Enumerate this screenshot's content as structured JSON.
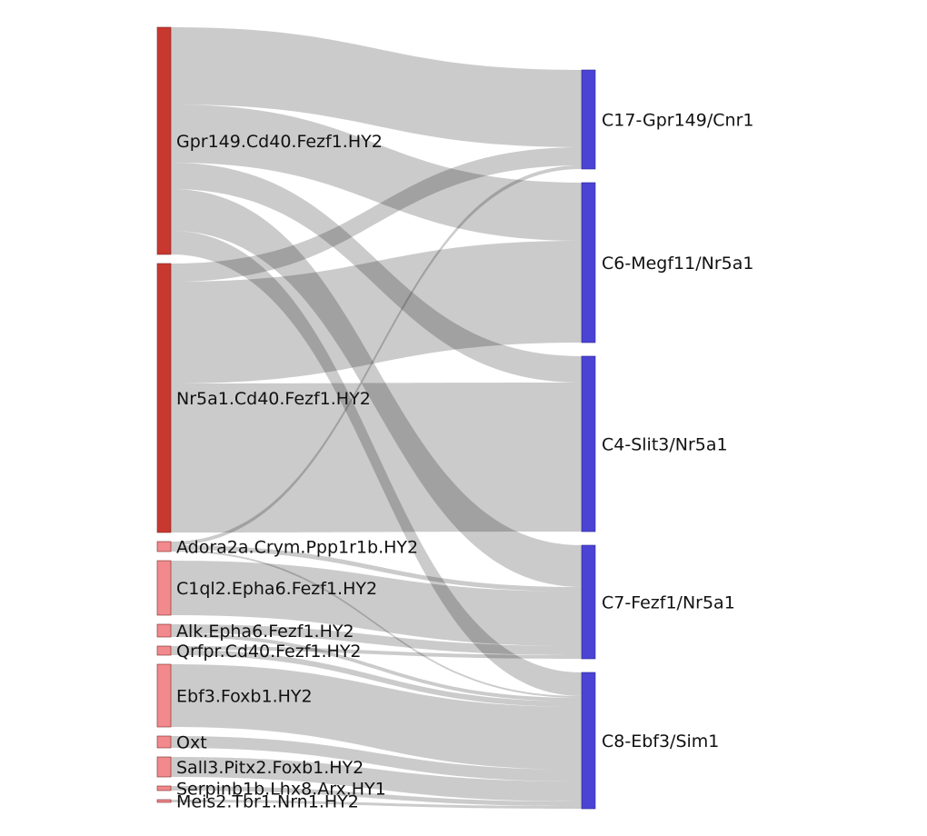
{
  "chart_data": {
    "type": "sankey",
    "colors": {
      "source_major": "#c8382f",
      "source_minor": "#f2898c",
      "target": "#4a43d4",
      "link": "#8c8c8c"
    },
    "sources": [
      {
        "id": "s1",
        "label": "Gpr149.Cd40.Fezf1.HY2",
        "major": true
      },
      {
        "id": "s2",
        "label": "Nr5a1.Cd40.Fezf1.HY2",
        "major": true
      },
      {
        "id": "s3",
        "label": "Adora2a.Crym.Ppp1r1b.HY2",
        "major": false
      },
      {
        "id": "s4",
        "label": "C1ql2.Epha6.Fezf1.HY2",
        "major": false
      },
      {
        "id": "s5",
        "label": "Alk.Epha6.Fezf1.HY2",
        "major": false
      },
      {
        "id": "s6",
        "label": "Qrfpr.Cd40.Fezf1.HY2",
        "major": false
      },
      {
        "id": "s7",
        "label": "Ebf3.Foxb1.HY2",
        "major": false
      },
      {
        "id": "s8",
        "label": "Oxt",
        "major": false
      },
      {
        "id": "s9",
        "label": "Sall3.Pitx2.Foxb1.HY2",
        "major": false
      },
      {
        "id": "s10",
        "label": "Serpinb1b.Lhx8.Arx.HY1",
        "major": false
      },
      {
        "id": "s11",
        "label": "Meis2.Tbr1.Nrn1.HY2",
        "major": false
      }
    ],
    "targets": [
      {
        "id": "t1",
        "label": "C17-Gpr149/Cnr1"
      },
      {
        "id": "t2",
        "label": "C6-Megf11/Nr5a1"
      },
      {
        "id": "t3",
        "label": "C4-Slit3/Nr5a1"
      },
      {
        "id": "t4",
        "label": "C7-Fezf1/Nr5a1"
      },
      {
        "id": "t5",
        "label": "C8-Ebf3/Sim1"
      }
    ],
    "links": [
      {
        "source": "s1",
        "target": "t1",
        "value": 85
      },
      {
        "source": "s1",
        "target": "t2",
        "value": 64
      },
      {
        "source": "s1",
        "target": "t3",
        "value": 29
      },
      {
        "source": "s1",
        "target": "t4",
        "value": 46
      },
      {
        "source": "s1",
        "target": "t5",
        "value": 26
      },
      {
        "source": "s2",
        "target": "t1",
        "value": 20
      },
      {
        "source": "s2",
        "target": "t2",
        "value": 112
      },
      {
        "source": "s2",
        "target": "t3",
        "value": 164
      },
      {
        "source": "s3",
        "target": "t1",
        "value": 4
      },
      {
        "source": "s3",
        "target": "t4",
        "value": 5
      },
      {
        "source": "s3",
        "target": "t5",
        "value": 2
      },
      {
        "source": "s4",
        "target": "t4",
        "value": 60
      },
      {
        "source": "s5",
        "target": "t4",
        "value": 10
      },
      {
        "source": "s5",
        "target": "t5",
        "value": 4
      },
      {
        "source": "s6",
        "target": "t4",
        "value": 4
      },
      {
        "source": "s6",
        "target": "t5",
        "value": 6
      },
      {
        "source": "s7",
        "target": "t5",
        "value": 69
      },
      {
        "source": "s8",
        "target": "t5",
        "value": 13
      },
      {
        "source": "s9",
        "target": "t5",
        "value": 22
      },
      {
        "source": "s10",
        "target": "t5",
        "value": 5
      },
      {
        "source": "s11",
        "target": "t5",
        "value": 3
      }
    ]
  }
}
